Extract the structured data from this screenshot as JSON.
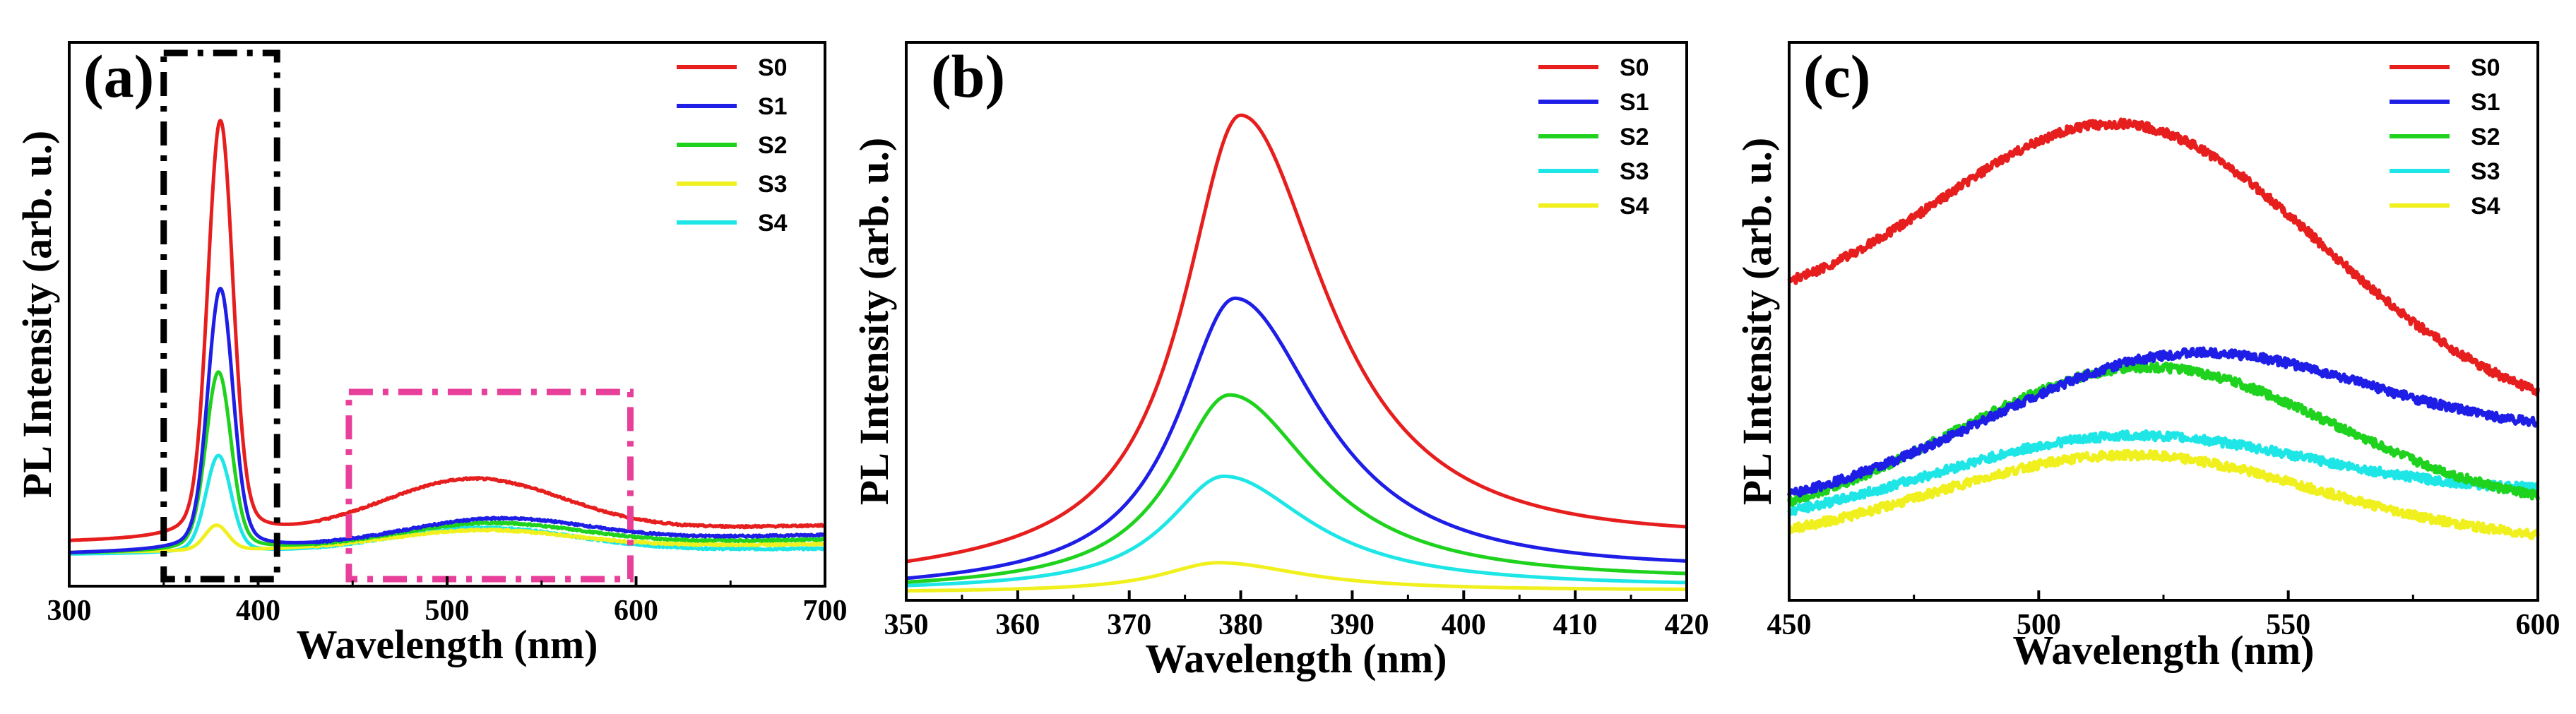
{
  "chart_data": [
    {
      "type": "line",
      "title": "(a)",
      "xlabel": "Wavelength (nm)",
      "ylabel": "PL Intensity (arb. u.)",
      "xlim": [
        300,
        700
      ],
      "ylim": [
        0,
        1.05
      ],
      "xticks": [
        "300",
        "400",
        "500",
        "600",
        "700"
      ],
      "legend": [
        "S0",
        "S1",
        "S2",
        "S3",
        "S4"
      ],
      "legend_position": "top-right",
      "series": [
        {
          "name": "S0",
          "color": "#e61e1e",
          "uv_peak_nm": 380,
          "uv_peak": 0.94,
          "uv_width_nm": 6.5,
          "vis_peak_nm": 515,
          "vis_peak": 0.17,
          "baseline_start": 0.035,
          "baseline_end": 0.07
        },
        {
          "name": "S1",
          "color": "#1e1ee6",
          "uv_peak_nm": 380,
          "uv_peak": 0.58,
          "uv_width_nm": 6.5,
          "vis_peak_nm": 530,
          "vis_peak": 0.085,
          "baseline_start": 0.01,
          "baseline_end": 0.05
        },
        {
          "name": "S2",
          "color": "#1ed21e",
          "uv_peak_nm": 379,
          "uv_peak": 0.4,
          "uv_width_nm": 6.5,
          "vis_peak_nm": 525,
          "vis_peak": 0.075,
          "baseline_start": 0.01,
          "baseline_end": 0.04
        },
        {
          "name": "S3",
          "color": "#f0f01e",
          "uv_peak_nm": 378,
          "uv_peak": 0.07,
          "uv_width_nm": 6.0,
          "vis_peak_nm": 520,
          "vis_peak": 0.06,
          "baseline_start": 0.012,
          "baseline_end": 0.03
        },
        {
          "name": "S4",
          "color": "#1ee6e6",
          "uv_peak_nm": 379,
          "uv_peak": 0.22,
          "uv_width_nm": 6.5,
          "vis_peak_nm": 520,
          "vis_peak": 0.065,
          "baseline_start": 0.008,
          "baseline_end": 0.02
        }
      ],
      "annotations": [
        {
          "label": "UV emission region",
          "x_range_nm": [
            350,
            410
          ],
          "style": "dash-dot",
          "color": "#000000"
        },
        {
          "label": "visible emission region",
          "x_range_nm": [
            448,
            597
          ],
          "style": "dash-dot",
          "color": "#e8409a"
        }
      ]
    },
    {
      "type": "line",
      "title": "(b)",
      "xlabel": "Wavelength (nm)",
      "ylabel": "PL Intensity (arb. u.)",
      "xlim": [
        350,
        420
      ],
      "ylim": [
        0,
        1.0
      ],
      "xticks": [
        "350",
        "360",
        "370",
        "380",
        "390",
        "400",
        "410",
        "420"
      ],
      "legend": [
        "S0",
        "S1",
        "S2",
        "S3",
        "S4"
      ],
      "legend_position": "top-right",
      "series": [
        {
          "name": "S0",
          "color": "#e61e1e",
          "peak_nm": 380,
          "peak": 0.94,
          "baseline_start": 0.025,
          "baseline_end": 0.085
        },
        {
          "name": "S1",
          "color": "#1e1ee6",
          "peak_nm": 379.5,
          "peak": 0.58,
          "baseline_start": 0.005,
          "baseline_end": 0.035
        },
        {
          "name": "S2",
          "color": "#1ed21e",
          "peak_nm": 379,
          "peak": 0.39,
          "baseline_start": 0.005,
          "baseline_end": 0.02
        },
        {
          "name": "S3",
          "color": "#1ee6e6",
          "peak_nm": 378.5,
          "peak": 0.23,
          "baseline_start": 0.005,
          "baseline_end": 0.01
        },
        {
          "name": "S4",
          "color": "#f0f01e",
          "peak_nm": 378,
          "peak": 0.06,
          "baseline_start": 0.002,
          "baseline_end": 0.005
        }
      ]
    },
    {
      "type": "line",
      "title": "(c)",
      "xlabel": "Wavelength (nm)",
      "ylabel": "PL Intensity (arb. u.)",
      "xlim": [
        450,
        600
      ],
      "ylim": [
        0,
        1.0
      ],
      "xticks": [
        "450",
        "500",
        "550",
        "600"
      ],
      "legend": [
        "S0",
        "S1",
        "S2",
        "S3",
        "S4"
      ],
      "legend_position": "top-right",
      "series": [
        {
          "name": "S0",
          "color": "#e61e1e",
          "peak_nm": 515,
          "peak": 0.92,
          "start": 0.5,
          "end": 0.32
        },
        {
          "name": "S1",
          "color": "#1e1ee6",
          "peak_nm": 533,
          "peak": 0.45,
          "start": 0.13,
          "end": 0.27
        },
        {
          "name": "S2",
          "color": "#1ed21e",
          "peak_nm": 522,
          "peak": 0.42,
          "start": 0.09,
          "end": 0.12
        },
        {
          "name": "S3",
          "color": "#1ee6e6",
          "peak_nm": 520,
          "peak": 0.28,
          "start": 0.09,
          "end": 0.16
        },
        {
          "name": "S4",
          "color": "#f0f01e",
          "peak_nm": 518,
          "peak": 0.24,
          "start": 0.05,
          "end": 0.06
        }
      ]
    }
  ]
}
